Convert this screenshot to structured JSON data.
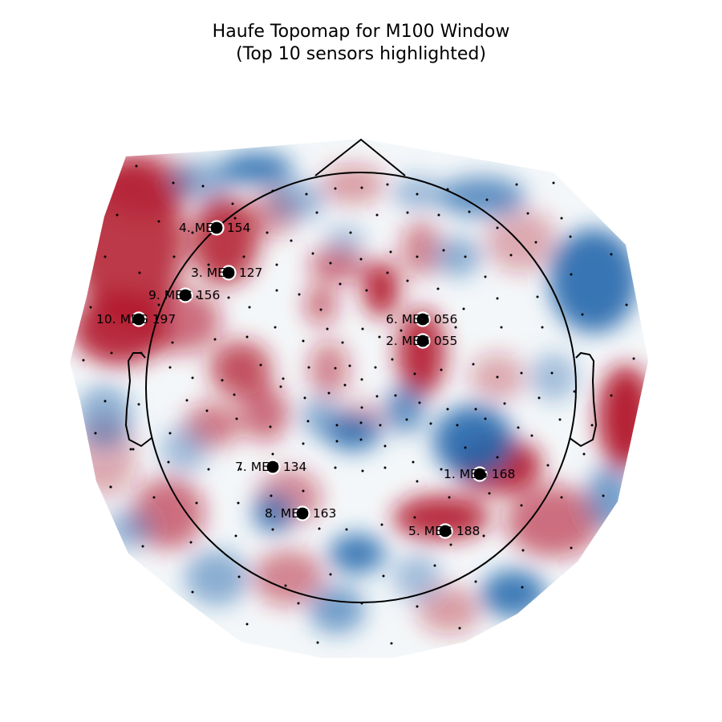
{
  "title": {
    "line1": "Haufe Topomap for M100 Window",
    "line2": "(Top 10 sensors highlighted)"
  },
  "colormap": {
    "name": "RdBu_r",
    "negative": "#2166ac",
    "neutral": "#f7f7f7",
    "positive": "#b2182b"
  },
  "highlight_style": {
    "marker_fill": "#000000",
    "marker_edge": "#ffffff"
  },
  "highlighted_sensors": [
    {
      "rank": 1,
      "label": "1. MEG 168"
    },
    {
      "rank": 2,
      "label": "2. MEG 055"
    },
    {
      "rank": 3,
      "label": "3. MEG 127"
    },
    {
      "rank": 4,
      "label": "4. MEG 154"
    },
    {
      "rank": 5,
      "label": "5. MEG 188"
    },
    {
      "rank": 6,
      "label": "6. MEG 056"
    },
    {
      "rank": 7,
      "label": "7. MEG 134"
    },
    {
      "rank": 8,
      "label": "8. MEG 163"
    },
    {
      "rank": 9,
      "label": "9. MEG 156"
    },
    {
      "rank": 10,
      "label": "10. MEG 197"
    }
  ]
}
